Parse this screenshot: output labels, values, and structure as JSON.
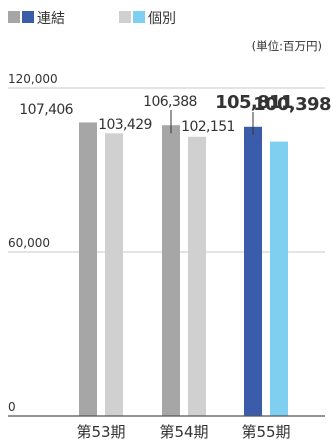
{
  "legend": {
    "consolidated_label": "連結",
    "individual_label": "個別"
  },
  "unit_label": "(単位:百万円)",
  "colors": {
    "consolidated_past": "#a6a6a6",
    "individual_past": "#d0d0d0",
    "consolidated_current": "#3b5bab",
    "individual_current": "#7fcff0",
    "gridline": "#c8c8c8",
    "axis": "#555555",
    "text": "#333333"
  },
  "chart_data": {
    "type": "bar",
    "categories": [
      "第53期",
      "第54期",
      "第55期"
    ],
    "series": [
      {
        "name": "連結",
        "values": [
          107406,
          106388,
          105811
        ]
      },
      {
        "name": "個別",
        "values": [
          103429,
          102151,
          100398
        ]
      }
    ],
    "value_labels": {
      "連結": [
        "107,406",
        "106,388",
        "105,811"
      ],
      "個別": [
        "103,429",
        "102,151",
        "100,398"
      ]
    },
    "y_ticks": [
      {
        "value": 0,
        "label": "0"
      },
      {
        "value": 60000,
        "label": "60,000"
      },
      {
        "value": 120000,
        "label": "120,000"
      }
    ],
    "ylim": [
      0,
      120000
    ],
    "highlight_category": "第55期",
    "legend_position": "top-left",
    "grid": true
  }
}
